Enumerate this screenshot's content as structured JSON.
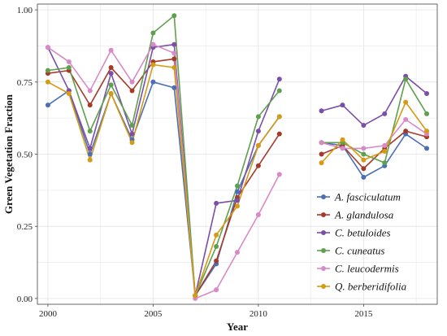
{
  "chart_data": {
    "type": "line",
    "xlabel": "Year",
    "ylabel": "Green Vegetation Fraction",
    "xlim": [
      1999.5,
      2018.5
    ],
    "ylim": [
      -0.02,
      1.02
    ],
    "x_ticks": [
      2000,
      2005,
      2010,
      2015
    ],
    "y_ticks": [
      0.0,
      0.25,
      0.5,
      0.75,
      1.0
    ],
    "x_tick_labels": [
      "2000",
      "2005",
      "2010",
      "2015"
    ],
    "y_tick_labels": [
      "0.00",
      "0.25",
      "0.50",
      "0.75",
      "1.00"
    ],
    "grid": true,
    "legend_position": "bottom-right",
    "x": [
      2000,
      2001,
      2002,
      2003,
      2004,
      2005,
      2006,
      2007,
      2008,
      2009,
      2010,
      2011,
      2012,
      2013,
      2014,
      2015,
      2016,
      2017,
      2018
    ],
    "series": [
      {
        "name": "A. fasciculatum",
        "color": "#4a6fb5",
        "values": [
          0.67,
          0.72,
          0.5,
          0.71,
          0.55,
          0.75,
          0.73,
          0.01,
          0.12,
          0.37,
          0.53,
          0.63,
          null,
          0.54,
          0.53,
          0.42,
          0.46,
          0.57,
          0.52
        ]
      },
      {
        "name": "A. glandulosa",
        "color": "#a63a2a",
        "values": [
          0.78,
          0.79,
          0.67,
          0.8,
          0.72,
          0.82,
          0.83,
          0.01,
          0.13,
          0.35,
          0.46,
          0.57,
          null,
          0.5,
          0.53,
          0.45,
          0.52,
          0.58,
          0.56
        ]
      },
      {
        "name": "C. betuloides",
        "color": "#7b4fa8",
        "values": [
          0.87,
          0.72,
          0.52,
          0.78,
          0.57,
          0.87,
          0.88,
          0.01,
          0.33,
          0.34,
          0.58,
          0.76,
          null,
          0.65,
          0.67,
          0.6,
          0.64,
          0.77,
          0.71
        ]
      },
      {
        "name": "C. cuneatus",
        "color": "#5fa04e",
        "values": [
          0.79,
          0.8,
          0.58,
          0.74,
          0.6,
          0.92,
          0.98,
          0.01,
          0.18,
          0.39,
          0.63,
          0.72,
          null,
          0.54,
          0.54,
          0.5,
          0.47,
          0.76,
          0.64
        ]
      },
      {
        "name": "C. leucodermis",
        "color": "#d88ac8",
        "values": [
          0.87,
          0.82,
          0.72,
          0.86,
          0.75,
          0.88,
          0.85,
          0.0,
          0.03,
          0.16,
          0.29,
          0.43,
          null,
          0.54,
          0.52,
          0.52,
          0.53,
          0.62,
          0.57
        ]
      },
      {
        "name": "Q. berberidifolia",
        "color": "#d59a16",
        "values": [
          0.75,
          0.71,
          0.48,
          0.71,
          0.54,
          0.81,
          0.8,
          0.01,
          0.22,
          0.32,
          0.53,
          0.63,
          null,
          0.47,
          0.55,
          0.48,
          0.51,
          0.68,
          0.58
        ]
      }
    ]
  }
}
